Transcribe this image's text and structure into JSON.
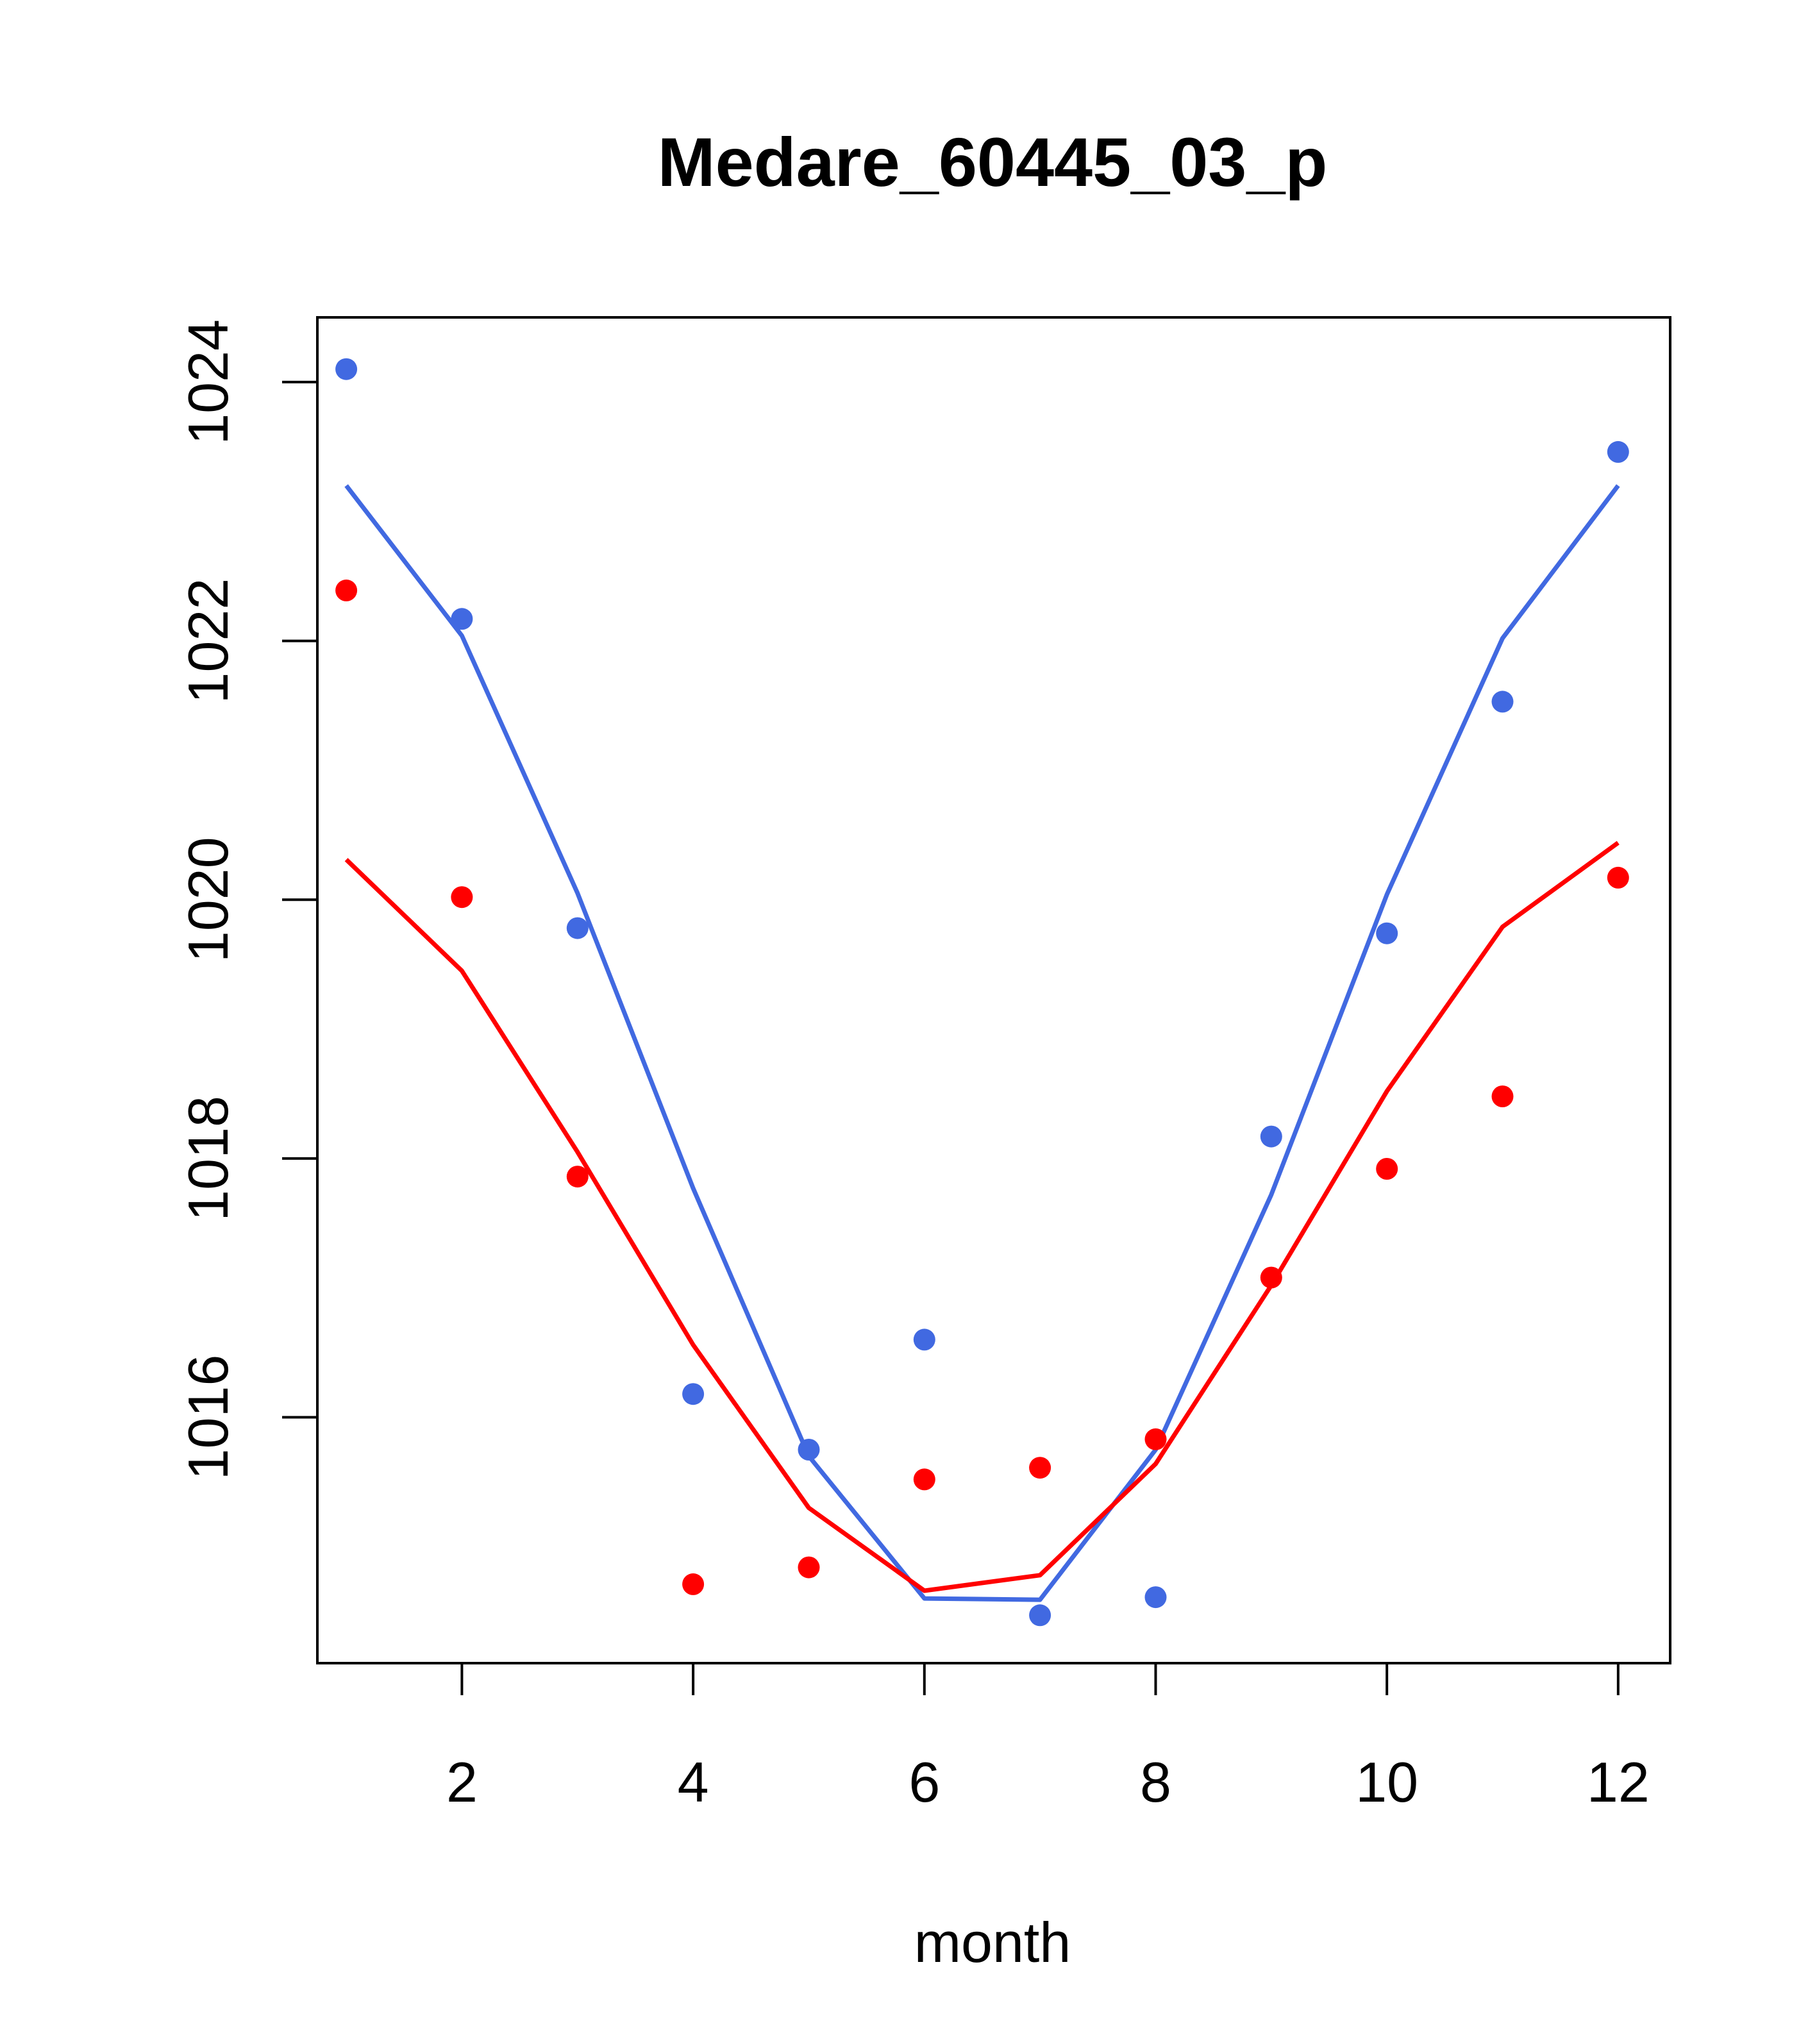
{
  "chart_data": {
    "type": "scatter",
    "title": "Medare_60445_03_p",
    "xlabel": "month",
    "ylabel": "",
    "xlim": [
      0.75,
      12.45
    ],
    "ylim": [
      1014.1,
      1024.5
    ],
    "xticks": [
      2,
      4,
      6,
      8,
      10,
      12
    ],
    "yticks": [
      1016,
      1018,
      1020,
      1022,
      1024
    ],
    "grid": false,
    "legend": "none",
    "series": [
      {
        "kind": "points",
        "color": "#4169E1",
        "x": [
          1,
          2,
          3,
          4,
          5,
          6,
          7,
          8,
          9,
          10,
          11,
          12
        ],
        "y": [
          1024.1,
          1022.17,
          1019.78,
          1016.18,
          1015.75,
          1016.6,
          1014.47,
          1014.61,
          1018.17,
          1019.74,
          1021.53,
          1023.46
        ]
      },
      {
        "kind": "points",
        "color": "#FF0000",
        "x": [
          1,
          2,
          3,
          4,
          5,
          6,
          7,
          8,
          9,
          10,
          11,
          12
        ],
        "y": [
          1022.39,
          1020.02,
          1017.86,
          1014.71,
          1014.84,
          1015.52,
          1015.61,
          1015.83,
          1017.08,
          1017.92,
          1018.48,
          1020.17
        ]
      },
      {
        "kind": "line",
        "color": "#4169E1",
        "x": [
          1,
          2,
          3,
          4,
          5,
          6,
          7,
          8,
          9,
          10,
          11,
          12
        ],
        "y": [
          1023.2,
          1022.04,
          1020.05,
          1017.77,
          1015.7,
          1014.6,
          1014.59,
          1015.75,
          1017.72,
          1020.04,
          1022.02,
          1023.2
        ]
      },
      {
        "kind": "line",
        "color": "#FF0000",
        "x": [
          1,
          2,
          3,
          4,
          5,
          6,
          7,
          8,
          9,
          10,
          11,
          12
        ],
        "y": [
          1020.31,
          1019.45,
          1018.05,
          1016.56,
          1015.3,
          1014.66,
          1014.78,
          1015.64,
          1017.02,
          1018.52,
          1019.79,
          1020.44
        ]
      }
    ]
  }
}
